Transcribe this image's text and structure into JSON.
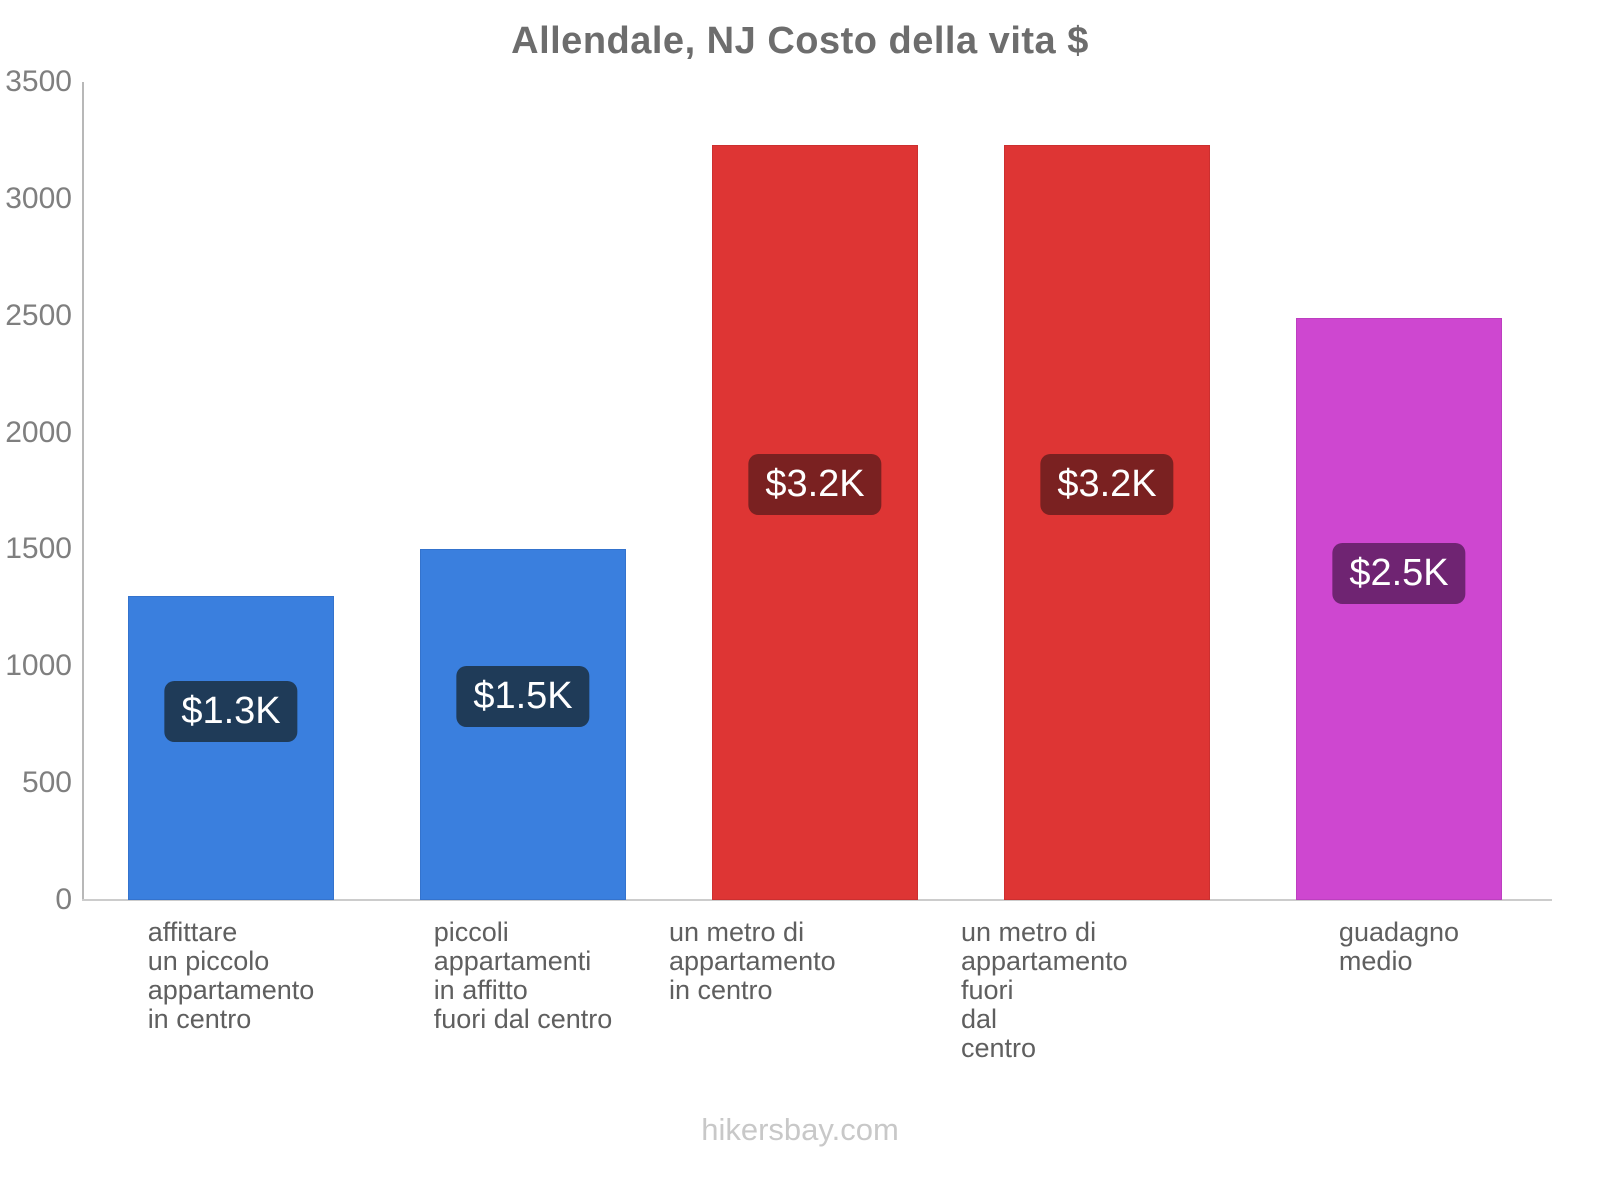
{
  "page": {
    "title": "Allendale, NJ Costo della vita $",
    "footer": "hikersbay.com"
  },
  "chart_data": {
    "type": "bar",
    "title": "Allendale, NJ Costo della vita $",
    "xlabel": "",
    "ylabel": "",
    "ylim": [
      0,
      3500
    ],
    "yticks": [
      0,
      500,
      1000,
      1500,
      2000,
      2500,
      3000,
      3500
    ],
    "grid": false,
    "legend": false,
    "currency": "$",
    "categories": [
      [
        "affittare",
        "un piccolo",
        "appartamento",
        "in centro"
      ],
      [
        "piccoli",
        "appartamenti",
        "in affitto",
        "fuori dal centro"
      ],
      [
        "un metro di appartamento",
        "in centro"
      ],
      [
        "un metro di appartamento",
        "fuori",
        "dal",
        "centro"
      ],
      [
        "guadagno",
        "medio"
      ]
    ],
    "values": [
      1300,
      1500,
      3230,
      3230,
      2490
    ],
    "bar_labels": [
      "$1.3K",
      "$1.5K",
      "$3.2K",
      "$3.2K",
      "$2.5K"
    ],
    "bar_colors": [
      "#3a7fde",
      "#3a7fde",
      "#de3534",
      "#de3534",
      "#ce47d0"
    ],
    "bar_border_colors": [
      "#3473cd",
      "#3473cd",
      "#cc2f2f",
      "#cc2f2f",
      "#bd3fc0"
    ],
    "badge_colors": [
      "#1f3b58",
      "#1f3b58",
      "#7a2121",
      "#7a2121",
      "#6f2472"
    ],
    "badge_center_frac": [
      0.62,
      0.58,
      0.55,
      0.55,
      0.56
    ],
    "colors": {
      "axis": "#b8b8b8",
      "baseline": "#cccccc",
      "title_text": "#6d6d6d",
      "ytick_text": "#7f7f7f",
      "xlabel_text": "#5f5f5f",
      "value_text": "#ffffff",
      "footer_text": "#c8c8c8"
    },
    "footer": "hikersbay.com"
  }
}
